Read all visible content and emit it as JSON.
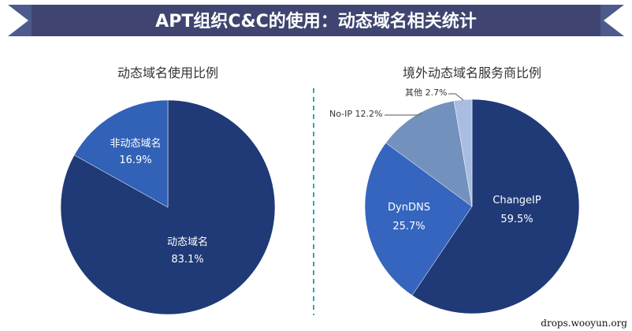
{
  "banner": {
    "title": "APT组织C&C的使用：动态域名相关统计",
    "color": "#3f4570"
  },
  "watermark": "drops.wooyun.org",
  "divider_color": "#3aa0b8",
  "chart_data": [
    {
      "type": "pie",
      "title": "动态域名使用比例",
      "slices": [
        {
          "label": "动态域名",
          "value": 83.1,
          "value_label": "83.1%",
          "color": "#1f3a76"
        },
        {
          "label": "非动态域名",
          "value": 16.9,
          "value_label": "16.9%",
          "color": "#3262b7"
        }
      ]
    },
    {
      "type": "pie",
      "title": "境外动态域名服务商比例",
      "slices": [
        {
          "label": "ChangeIP",
          "value": 59.5,
          "value_label": "59.5%",
          "color": "#1f3a76"
        },
        {
          "label": "DynDNS",
          "value": 25.7,
          "value_label": "25.7%",
          "color": "#3565be"
        },
        {
          "label": "No-IP",
          "value": 12.2,
          "value_label": "12.2%",
          "color": "#7391bd"
        },
        {
          "label": "其他",
          "value": 2.7,
          "value_label": "2.7%",
          "color": "#a9bde3"
        }
      ]
    }
  ]
}
